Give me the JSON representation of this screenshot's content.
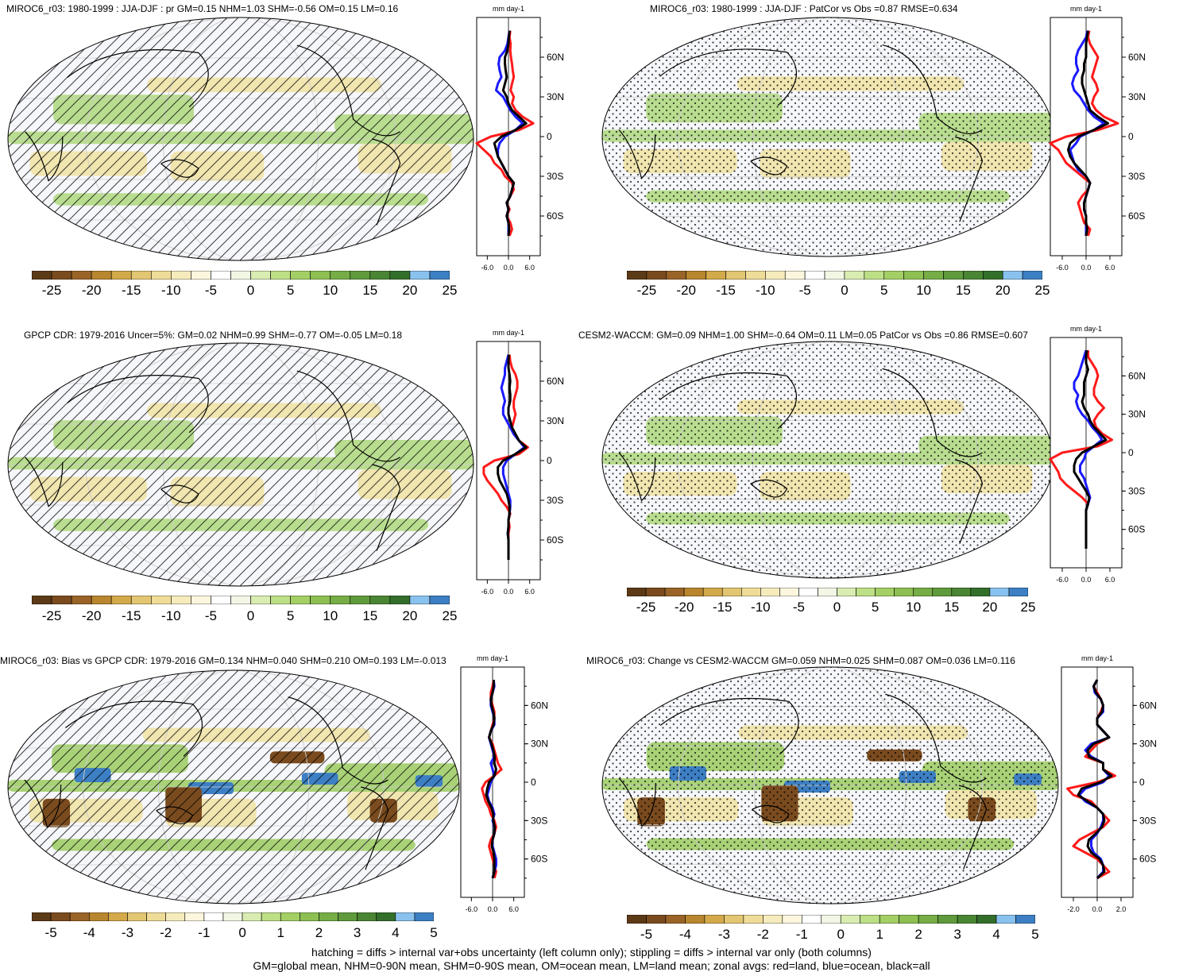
{
  "panels": [
    {
      "id": "p1",
      "title": "MIROC6_r03: 1980-1999 : JJA-DJF : pr GM=0.15 NHM=1.03 SHM=-0.56 OM=0.15 LM=0.16",
      "pattern": "hatch",
      "cbar_ticks": [
        "-25",
        "-20",
        "-15",
        "-10",
        "-5",
        "0",
        "5",
        "10",
        "15",
        "20",
        "25"
      ],
      "zonal": {
        "unit": "mm day-1",
        "xticks": [
          "-6.0",
          "0.0",
          "6.0"
        ],
        "xlim": [
          -9,
          9
        ],
        "ylim": [
          -90,
          90
        ],
        "ytick_labels": [
          "60N",
          "30N",
          "0",
          "30S",
          "60S"
        ],
        "lat": [
          80,
          75,
          70,
          65,
          60,
          55,
          50,
          45,
          40,
          35,
          30,
          25,
          20,
          15,
          10,
          5,
          0,
          -5,
          -10,
          -15,
          -20,
          -25,
          -30,
          -35,
          -40,
          -45,
          -50,
          -55,
          -60,
          -65,
          -70,
          -75
        ],
        "land": [
          0.5,
          0.3,
          0.6,
          0.5,
          0.7,
          1.0,
          1.2,
          1.5,
          1.0,
          0.6,
          1.5,
          1.0,
          2.0,
          4.0,
          7.0,
          3.0,
          -5.0,
          -9.0,
          -7.0,
          -5.0,
          -4.0,
          -2.0,
          -1.0,
          1.0,
          1.5,
          0.5,
          -0.5,
          0.3,
          -0.5,
          0.5,
          1.0,
          0.3
        ],
        "ocean": [
          0.3,
          0.0,
          -0.3,
          -1.0,
          -2.5,
          -2.8,
          -2.5,
          -2.0,
          -3.0,
          -3.5,
          -1.5,
          -0.5,
          0.5,
          2.0,
          4.0,
          2.0,
          -1.0,
          -2.5,
          -3.0,
          -3.0,
          -2.0,
          -1.0,
          0.0,
          1.5,
          1.0,
          0.5,
          -0.5,
          0.0,
          -0.5,
          0.0,
          0.0,
          0.0
        ],
        "all": [
          0.3,
          0.1,
          0.0,
          -0.3,
          -1.0,
          -1.0,
          -0.8,
          -0.5,
          -1.0,
          -1.5,
          -0.5,
          0.0,
          1.0,
          3.0,
          5.0,
          2.0,
          -2.0,
          -4.0,
          -3.5,
          -3.0,
          -2.0,
          -1.0,
          0.0,
          1.5,
          1.0,
          0.5,
          -0.5,
          0.0,
          -0.5,
          0.0,
          0.2,
          0.0
        ]
      }
    },
    {
      "id": "p2",
      "title": "MIROC6_r03: 1980-1999 : JJA-DJF : PatCor vs Obs =0.87 RMSE=0.634",
      "pattern": "stipple",
      "cbar_ticks": [
        "-25",
        "-20",
        "-15",
        "-10",
        "-5",
        "0",
        "5",
        "10",
        "15",
        "20",
        "25"
      ],
      "zonal": {
        "unit": "mm day-1",
        "xticks": [
          "-6.0",
          "0.0",
          "6.0"
        ],
        "xlim": [
          -9,
          9
        ],
        "ylim": [
          -90,
          90
        ],
        "ytick_labels": [
          "60N",
          "30N",
          "0",
          "30S",
          "60S"
        ],
        "lat": [
          80,
          75,
          70,
          65,
          60,
          55,
          50,
          45,
          40,
          35,
          30,
          25,
          20,
          15,
          10,
          5,
          0,
          -5,
          -10,
          -15,
          -20,
          -25,
          -30,
          -35,
          -40,
          -45,
          -50,
          -55,
          -60,
          -65,
          -70,
          -75
        ],
        "land": [
          0.8,
          0.5,
          1.0,
          2.0,
          3.0,
          2.5,
          2.0,
          1.5,
          2.5,
          3.0,
          2.0,
          1.5,
          2.5,
          4.5,
          8.0,
          3.0,
          -5.0,
          -9.0,
          -7.0,
          -6.0,
          -5.0,
          -3.0,
          -1.0,
          1.0,
          0.5,
          -1.0,
          -2.0,
          -1.5,
          -1.0,
          -0.5,
          1.0,
          0.5
        ],
        "ocean": [
          0.3,
          0.0,
          -1.0,
          -2.0,
          -2.5,
          -2.5,
          -2.0,
          -3.0,
          -3.5,
          -3.0,
          -1.5,
          -0.5,
          0.5,
          2.0,
          4.5,
          2.0,
          -1.5,
          -2.5,
          -4.0,
          -3.5,
          -3.0,
          -2.0,
          0.0,
          1.0,
          0.5,
          0.0,
          -0.5,
          -0.5,
          0.0,
          0.0,
          0.0,
          0.0
        ],
        "all": [
          0.5,
          0.2,
          0.0,
          0.0,
          0.0,
          -0.5,
          -0.5,
          -1.0,
          -1.0,
          -0.5,
          0.0,
          0.5,
          1.0,
          3.0,
          5.5,
          2.0,
          -2.0,
          -4.0,
          -4.5,
          -4.0,
          -3.0,
          -1.5,
          0.0,
          1.0,
          0.5,
          0.0,
          -0.5,
          -0.5,
          0.0,
          0.0,
          0.3,
          0.0
        ]
      }
    },
    {
      "id": "p3",
      "title": "GPCP CDR: 1979-2016 Uncer=5%: GM=0.02 NHM=0.99 SHM=-0.77 OM=-0.05 LM=0.18",
      "pattern": "hatch",
      "cbar_ticks": [
        "-25",
        "-20",
        "-15",
        "-10",
        "-5",
        "0",
        "5",
        "10",
        "15",
        "20",
        "25"
      ],
      "zonal": {
        "unit": "mm day-1",
        "xticks": [
          "-6.0",
          "0.0",
          "6.0"
        ],
        "xlim": [
          -9,
          9
        ],
        "ylim": [
          -90,
          90
        ],
        "ytick_labels": [
          "60N",
          "30N",
          "0",
          "30S",
          "60S"
        ],
        "lat": [
          80,
          75,
          70,
          65,
          60,
          55,
          50,
          45,
          40,
          35,
          30,
          25,
          20,
          15,
          10,
          5,
          0,
          -5,
          -10,
          -15,
          -20,
          -25,
          -30,
          -35,
          -40,
          -45,
          -50,
          -55,
          -60,
          -65,
          -70,
          -75
        ],
        "land": [
          0.3,
          0.5,
          1.0,
          2.0,
          2.5,
          2.5,
          2.0,
          1.5,
          1.5,
          2.0,
          1.5,
          1.0,
          1.5,
          3.0,
          5.5,
          3.0,
          -4.0,
          -7.0,
          -7.0,
          -6.0,
          -4.5,
          -3.0,
          -2.0,
          -0.5,
          0.5,
          0.0,
          0.3,
          0.0,
          0.0,
          0.0,
          0.0,
          0.0
        ],
        "ocean": [
          0.0,
          -0.5,
          -1.0,
          -1.0,
          -1.5,
          -2.0,
          -1.5,
          -1.0,
          -1.5,
          -1.5,
          -0.5,
          0.5,
          1.5,
          3.0,
          4.5,
          2.0,
          -0.5,
          -1.5,
          -1.5,
          -1.0,
          -0.5,
          0.0,
          0.5,
          0.5,
          0.3,
          0.0,
          0.0,
          -0.2,
          0.0,
          0.0,
          0.0,
          0.0
        ],
        "all": [
          0.1,
          0.0,
          0.0,
          0.3,
          0.5,
          0.3,
          0.5,
          0.5,
          0.0,
          0.0,
          0.5,
          1.0,
          2.0,
          3.0,
          5.0,
          2.0,
          -1.5,
          -3.0,
          -3.0,
          -2.5,
          -1.5,
          -0.5,
          0.0,
          0.3,
          0.3,
          0.0,
          0.0,
          -0.2,
          0.0,
          0.0,
          0.0,
          0.0
        ]
      }
    },
    {
      "id": "p4",
      "title": "CESM2-WACCM: GM=0.09 NHM=1.00 SHM=-0.64 OM=0.11 LM=0.05 PatCor vs Obs =0.86 RMSE=0.607",
      "pattern": "stipple",
      "cbar_ticks": [
        "-25",
        "-20",
        "-15",
        "-10",
        "-5",
        "0",
        "5",
        "10",
        "15",
        "20",
        "25"
      ],
      "zonal": {
        "unit": "mm day-1",
        "xticks": [
          "-6.0",
          "0.0",
          "6.0"
        ],
        "xlim": [
          -9,
          9
        ],
        "ylim": [
          -90,
          90
        ],
        "ytick_labels": [
          "60N",
          "30N",
          "0",
          "30S",
          "60S"
        ],
        "lat": [
          80,
          75,
          70,
          65,
          60,
          55,
          50,
          45,
          40,
          35,
          30,
          25,
          20,
          15,
          10,
          5,
          0,
          -5,
          -10,
          -15,
          -20,
          -25,
          -30,
          -35,
          -40,
          -45,
          -50,
          -55,
          -60,
          -65,
          -70,
          -75
        ],
        "land": [
          0.5,
          0.5,
          1.5,
          2.5,
          3.0,
          2.5,
          2.0,
          2.0,
          3.0,
          4.5,
          3.0,
          2.0,
          2.5,
          4.0,
          6.5,
          3.0,
          -6.0,
          -9.0,
          -8.0,
          -7.0,
          -6.5,
          -5.0,
          -3.0,
          -1.0,
          0.5,
          0.0,
          0.0,
          0.0,
          0.0,
          0.0,
          0.0,
          0.0
        ],
        "ocean": [
          0.0,
          -0.5,
          -1.0,
          -1.5,
          -2.0,
          -3.0,
          -3.0,
          -2.0,
          -2.5,
          -2.0,
          -1.0,
          0.5,
          1.5,
          3.0,
          4.0,
          2.0,
          0.0,
          -0.5,
          -1.5,
          -1.5,
          -0.5,
          0.0,
          0.5,
          1.0,
          0.5,
          0.0,
          0.0,
          0.0,
          0.0,
          0.0,
          0.0,
          0.0
        ],
        "all": [
          0.2,
          0.0,
          0.0,
          0.5,
          0.0,
          -0.5,
          -0.5,
          -0.5,
          -1.0,
          -0.5,
          0.5,
          1.0,
          2.0,
          3.5,
          5.0,
          2.0,
          -1.0,
          -2.5,
          -3.0,
          -3.0,
          -2.0,
          -1.0,
          0.0,
          0.8,
          0.5,
          0.0,
          0.0,
          0.0,
          0.0,
          0.0,
          0.0,
          0.0
        ]
      }
    },
    {
      "id": "p5",
      "title": "MIROC6_r03: Bias vs GPCP CDR: 1979-2016 GM=0.134 NHM=0.040 SHM=0.210 OM=0.193 LM=-0.013",
      "pattern": "hatch",
      "cbar_ticks": [
        "-5",
        "-4",
        "-3",
        "-2",
        "-1",
        "0",
        "1",
        "2",
        "3",
        "4",
        "5"
      ],
      "zonal": {
        "unit": "mm day-1",
        "xticks": [
          "-6.0",
          "0.0",
          "6.0"
        ],
        "xlim": [
          -9,
          9
        ],
        "ylim": [
          -90,
          90
        ],
        "ytick_labels": [
          "60N",
          "30N",
          "0",
          "30S",
          "60S"
        ],
        "lat": [
          80,
          75,
          70,
          65,
          60,
          55,
          50,
          45,
          40,
          35,
          30,
          25,
          20,
          15,
          10,
          5,
          0,
          -5,
          -10,
          -15,
          -20,
          -25,
          -30,
          -35,
          -40,
          -45,
          -50,
          -55,
          -60,
          -65,
          -70,
          -75
        ],
        "land": [
          0.3,
          0.0,
          -0.5,
          -0.5,
          0.0,
          0.5,
          0.5,
          0.0,
          -0.5,
          -1.0,
          0.0,
          0.5,
          1.0,
          1.5,
          2.5,
          0.5,
          -2.0,
          -3.0,
          -2.5,
          -2.0,
          -1.0,
          -0.5,
          0.5,
          1.0,
          0.5,
          -0.5,
          -1.0,
          -0.5,
          0.0,
          0.5,
          1.0,
          0.5
        ],
        "ocean": [
          0.3,
          0.5,
          0.0,
          -0.5,
          -0.5,
          0.0,
          0.5,
          0.5,
          -0.5,
          -1.0,
          -0.5,
          0.0,
          0.5,
          -0.5,
          0.0,
          0.5,
          -0.5,
          -1.0,
          -1.5,
          -1.0,
          0.0,
          0.5,
          0.0,
          0.5,
          0.5,
          0.0,
          0.0,
          0.5,
          1.0,
          1.0,
          0.5,
          0.0
        ],
        "all": [
          0.3,
          0.3,
          0.0,
          -0.5,
          -0.3,
          0.2,
          0.5,
          0.3,
          -0.5,
          -1.0,
          -0.3,
          0.2,
          0.6,
          0.5,
          1.0,
          0.5,
          -1.0,
          -1.5,
          -1.8,
          -1.2,
          -0.3,
          0.2,
          0.2,
          0.6,
          0.5,
          0.0,
          -0.2,
          0.3,
          0.5,
          0.5,
          0.5,
          0.0
        ]
      }
    },
    {
      "id": "p6",
      "title": "MIROC6_r03: Change vs CESM2-WACCM GM=0.059 NHM=0.025 SHM=0.087 OM=0.036 LM=0.116",
      "pattern": "stipple",
      "cbar_ticks": [
        "-5",
        "-4",
        "-3",
        "-2",
        "-1",
        "0",
        "1",
        "2",
        "3",
        "4",
        "5"
      ],
      "zonal": {
        "unit": "mm day-1",
        "xticks": [
          "-2.0",
          "0.0",
          "2.0"
        ],
        "xlim": [
          -3,
          3
        ],
        "ylim": [
          -90,
          90
        ],
        "ytick_labels": [
          "60N",
          "30N",
          "0",
          "30S",
          "60S"
        ],
        "lat": [
          80,
          75,
          70,
          65,
          60,
          55,
          50,
          45,
          40,
          35,
          30,
          25,
          20,
          15,
          10,
          5,
          0,
          -5,
          -10,
          -15,
          -20,
          -25,
          -30,
          -35,
          -40,
          -45,
          -50,
          -55,
          -60,
          -65,
          -70,
          -75
        ],
        "land": [
          0.0,
          -0.3,
          0.0,
          0.3,
          0.5,
          0.3,
          0.0,
          0.0,
          0.5,
          1.0,
          0.0,
          -0.5,
          -1.0,
          0.5,
          0.5,
          1.5,
          0.0,
          -2.5,
          -2.0,
          -0.5,
          0.0,
          0.5,
          1.0,
          0.5,
          -0.5,
          -1.5,
          -2.0,
          -1.0,
          0.0,
          0.5,
          1.0,
          0.0
        ],
        "ocean": [
          0.0,
          -0.3,
          -0.2,
          0.3,
          0.5,
          0.5,
          0.0,
          0.0,
          0.5,
          1.0,
          -0.5,
          -1.0,
          -0.5,
          0.5,
          0.5,
          1.0,
          0.5,
          -1.0,
          -1.5,
          -1.0,
          0.0,
          0.5,
          0.5,
          0.3,
          0.0,
          -0.5,
          -0.5,
          -0.3,
          0.3,
          0.5,
          0.5,
          0.0
        ],
        "all": [
          0.0,
          -0.3,
          -0.1,
          0.3,
          0.5,
          0.4,
          0.0,
          0.0,
          0.5,
          1.0,
          -0.3,
          -0.8,
          -0.7,
          0.5,
          0.5,
          1.2,
          0.3,
          -1.3,
          -1.6,
          -0.8,
          0.0,
          0.5,
          0.6,
          0.4,
          -0.1,
          -0.7,
          -0.8,
          -0.5,
          0.2,
          0.5,
          0.6,
          0.0
        ]
      }
    }
  ],
  "colormap": [
    "#5c3a17",
    "#7a4b1e",
    "#9a6428",
    "#b8862f",
    "#d3a94a",
    "#e3c672",
    "#efdc98",
    "#f6ebbc",
    "#fbf6dd",
    "#ffffff",
    "#f2f7e5",
    "#d9ecb2",
    "#bddf86",
    "#a3cf65",
    "#8dbf52",
    "#76ad46",
    "#5f9a3c",
    "#4a8533",
    "#336f2b",
    "#89c2ee",
    "#3d7fc4"
  ],
  "zonal_colors": {
    "land": "#ff1a1a",
    "ocean": "#1a1aff",
    "all": "#000000"
  },
  "footer": {
    "line1": "hatching = diffs > internal var+obs uncertainty (left column only); stippling = diffs > internal var only (both columns)",
    "line2": "GM=global mean, NHM=0-90N mean, SHM=0-90S mean, OM=ocean mean, LM=land mean; zonal avgs: red=land, blue=ocean, black=all"
  }
}
